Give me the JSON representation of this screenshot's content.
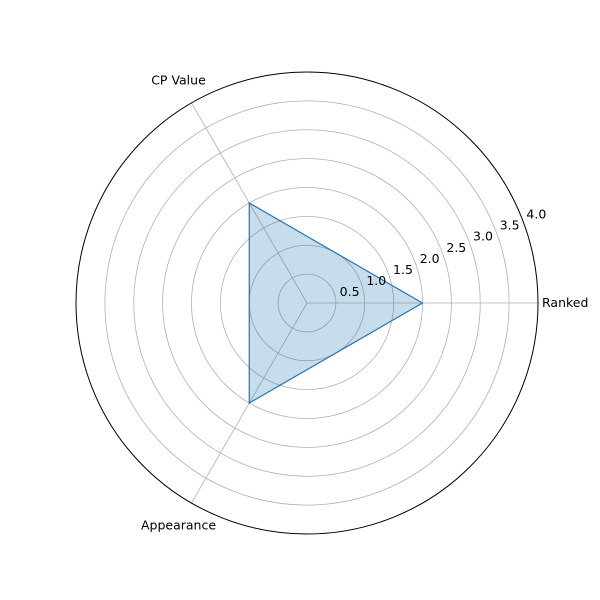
{
  "chart_data": {
    "type": "radar",
    "categories": [
      "Ranked",
      "CP Value",
      "Appearance"
    ],
    "series": [
      {
        "values": [
          2,
          2,
          2
        ],
        "color": "#1f77b4"
      }
    ],
    "r_ticks": [
      "0.5",
      "1.0",
      "1.5",
      "2.0",
      "2.5",
      "3.0",
      "3.5",
      "4.0"
    ],
    "r_tick_values": [
      0.5,
      1.0,
      1.5,
      2.0,
      2.5,
      3.0,
      3.5,
      4.0
    ],
    "rlim": [
      0,
      4
    ],
    "grid": true
  }
}
